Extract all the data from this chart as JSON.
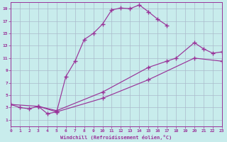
{
  "xlabel": "Windchill (Refroidissement éolien,°C)",
  "bg_color": "#c8ecec",
  "line_color": "#993399",
  "grid_color": "#aabbcc",
  "xmin": 0,
  "xmax": 23,
  "ymin": 0,
  "ymax": 20,
  "yticks": [
    1,
    3,
    5,
    7,
    9,
    11,
    13,
    15,
    17,
    19
  ],
  "xticks": [
    0,
    1,
    2,
    3,
    4,
    5,
    6,
    7,
    8,
    9,
    10,
    11,
    12,
    13,
    14,
    15,
    16,
    17,
    18,
    19,
    20,
    21,
    22,
    23
  ],
  "curve1_x": [
    0,
    1,
    2,
    3,
    4,
    5,
    6,
    7,
    8,
    9,
    10,
    11,
    12,
    13,
    14,
    15,
    16,
    17
  ],
  "curve1_y": [
    3.5,
    3.0,
    2.8,
    3.2,
    2.0,
    2.3,
    8.0,
    10.5,
    14.0,
    15.0,
    16.5,
    18.8,
    19.1,
    19.0,
    19.6,
    18.5,
    17.3,
    16.3
  ],
  "curve2_x": [
    3,
    5,
    10,
    15,
    17,
    18,
    20,
    21,
    22,
    23
  ],
  "curve2_y": [
    3.2,
    2.5,
    5.5,
    9.5,
    10.5,
    11.0,
    13.5,
    12.5,
    11.8,
    12.0
  ],
  "curve3_x": [
    0,
    3,
    5,
    10,
    15,
    20,
    23
  ],
  "curve3_y": [
    3.5,
    3.2,
    2.3,
    4.5,
    7.5,
    11.0,
    10.5
  ]
}
